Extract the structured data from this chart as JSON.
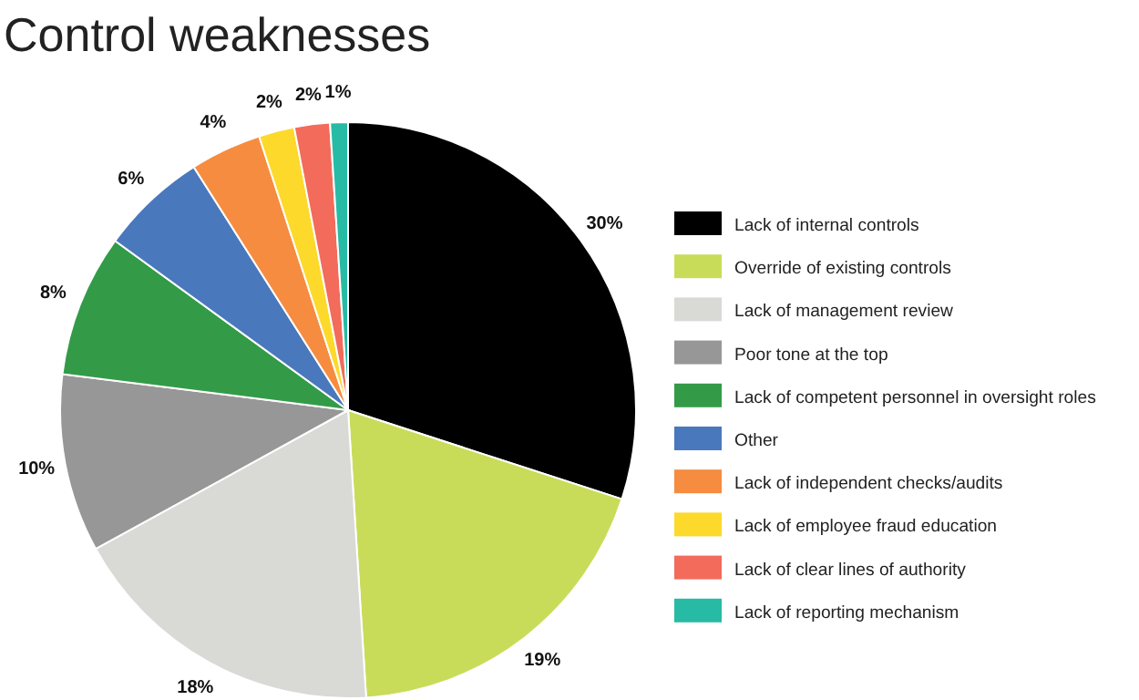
{
  "chart_data": {
    "type": "pie",
    "title": "Control weaknesses",
    "categories": [
      "Lack of internal controls",
      "Override of existing controls",
      "Lack of management review",
      "Poor tone at the top",
      "Lack of competent personnel in oversight roles",
      "Other",
      "Lack of independent checks/audits",
      "Lack of employee fraud education",
      "Lack of clear lines of authority",
      "Lack of reporting mechanism"
    ],
    "values": [
      30,
      19,
      18,
      10,
      8,
      6,
      4,
      2,
      2,
      1
    ],
    "value_labels": [
      "30%",
      "19%",
      "18%",
      "10%",
      "8%",
      "6%",
      "4%",
      "2%",
      "2%",
      "1%"
    ],
    "colors": [
      "#000000",
      "#c9dc5a",
      "#d9d9d6",
      "#979797",
      "#339b48",
      "#4a78bd",
      "#f68c3f",
      "#fdd92b",
      "#f26b5b",
      "#27bba5"
    ],
    "legend": "right"
  }
}
